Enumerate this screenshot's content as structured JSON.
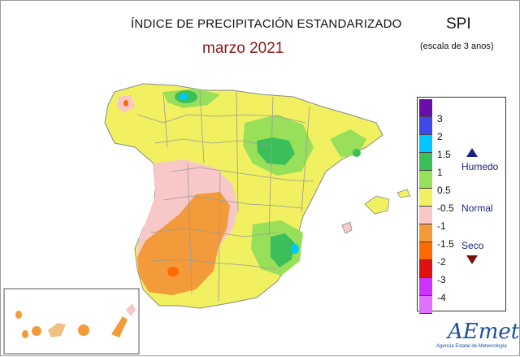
{
  "title": "ÍNDICE DE PRECIPITACIÓN ESTANDARIZADO",
  "subtitle": "marzo 2021",
  "spi_label": "SPI",
  "scale_note": "(escala de 3 anos)",
  "legend": {
    "ticks": [
      "3",
      "2",
      "1.5",
      "1",
      "0.5",
      "-0.5",
      "-1",
      "-1.5",
      "-2",
      "-3",
      "-4"
    ],
    "colors": [
      "#6a0dad",
      "#3f48e8",
      "#00c8ff",
      "#3bbf5a",
      "#99e05a",
      "#f0f060",
      "#f8c8c8",
      "#f39a3a",
      "#ff6a00",
      "#e01010",
      "#cc33ff",
      "#e070ff"
    ],
    "categories": {
      "wet": "Humedo",
      "normal": "Normal",
      "dry": "Seco"
    }
  },
  "logo": {
    "brand": "AEmet",
    "agency": "Agencia Estatal de Meteorología"
  }
}
